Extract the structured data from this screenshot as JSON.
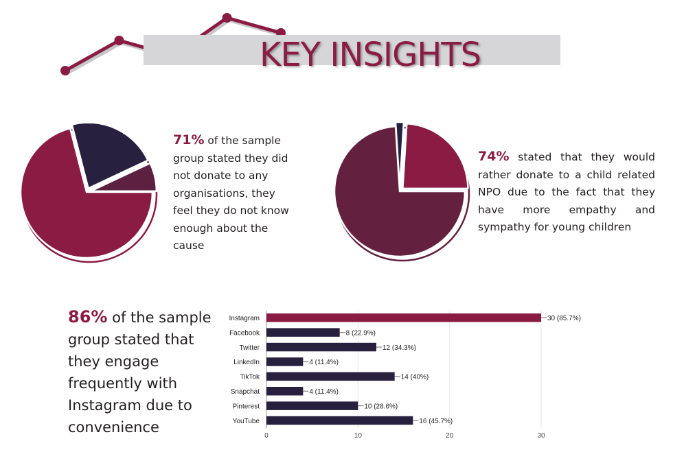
{
  "header": {
    "title": "KEY INSIGHTS",
    "decor_points": [
      2,
      6,
      4,
      9,
      7
    ]
  },
  "insights": [
    {
      "percent": "71%",
      "text": " of the sample group stated they did not donate to any organisations, they feel they do not know enough about the cause"
    },
    {
      "percent": "74%",
      "text": "  stated that they would rather donate to a child related NPO due to the fact that they have more empathy and sympathy for young children"
    },
    {
      "percent": "86%",
      "text": " of the sample group stated that they engage frequently with Instagram due to convenience"
    }
  ],
  "chart_data": [
    {
      "type": "pie",
      "slices": [
        {
          "value": 71,
          "color": "#8a1c43",
          "exploded": false
        },
        {
          "value": 22,
          "color": "#27203f",
          "exploded": true
        },
        {
          "value": 7,
          "color": "#5c2141",
          "exploded": true
        }
      ]
    },
    {
      "type": "pie",
      "slices": [
        {
          "value": 74,
          "color": "#63203f",
          "exploded": false
        },
        {
          "value": 2,
          "color": "#27203f",
          "exploded": true
        },
        {
          "value": 24,
          "color": "#8a1c43",
          "exploded": true
        }
      ]
    },
    {
      "type": "bar",
      "orientation": "horizontal",
      "categories": [
        "Instagram",
        "Facebook",
        "Twitter",
        "LinkedIn",
        "TikTok",
        "Snapchat",
        "Pinterest",
        "YouTube"
      ],
      "values": [
        30,
        8,
        12,
        4,
        14,
        4,
        10,
        16
      ],
      "labels": [
        "30 (85.7%)",
        "8 (22.9%)",
        "12 (34.3%)",
        "4 (11.4%)",
        "14 (40%)",
        "4 (11.4%)",
        "10 (28.6%)",
        "16 (45.7%)"
      ],
      "xlim": [
        0,
        30
      ],
      "xticks": [
        "0",
        "10",
        "20",
        "30"
      ],
      "grid": true,
      "highlight_color": "#8a1c43",
      "bar_color": "#27203f"
    }
  ],
  "colors": {
    "accent": "#8a1c43",
    "dark": "#27203f",
    "band": "#d6d6d8"
  }
}
